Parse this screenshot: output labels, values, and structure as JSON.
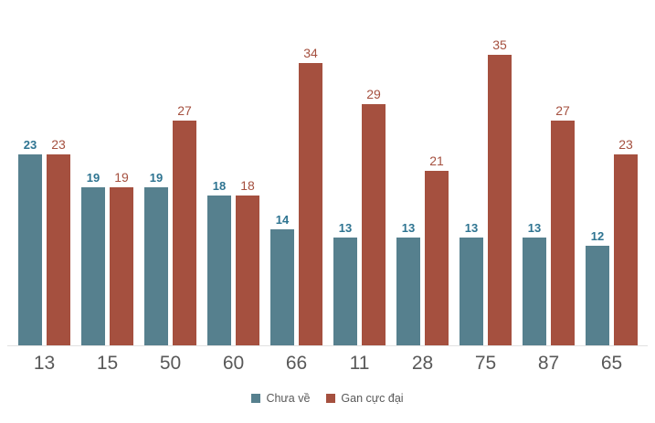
{
  "chart_data": {
    "type": "bar",
    "title": "",
    "xlabel": "",
    "ylabel": "",
    "categories": [
      "13",
      "15",
      "50",
      "60",
      "66",
      "11",
      "28",
      "75",
      "87",
      "65"
    ],
    "series": [
      {
        "name": "Chưa về",
        "color": "#56808e",
        "label_color": "#2e7491",
        "values": [
          23,
          19,
          19,
          18,
          14,
          13,
          13,
          13,
          13,
          12
        ]
      },
      {
        "name": "Gan cực đại",
        "color": "#a5503f",
        "label_color": "#a5503f",
        "values": [
          23,
          19,
          27,
          18,
          34,
          29,
          21,
          35,
          27,
          23
        ]
      }
    ],
    "ylim": [
      0,
      40
    ],
    "grid": false,
    "data_labels": true,
    "legend_position": "bottom"
  },
  "style": {
    "axis_label_color": "#595959",
    "axis_line_color": "#e2e2e2",
    "legend_text_color": "#595959",
    "background": "#ffffff"
  }
}
